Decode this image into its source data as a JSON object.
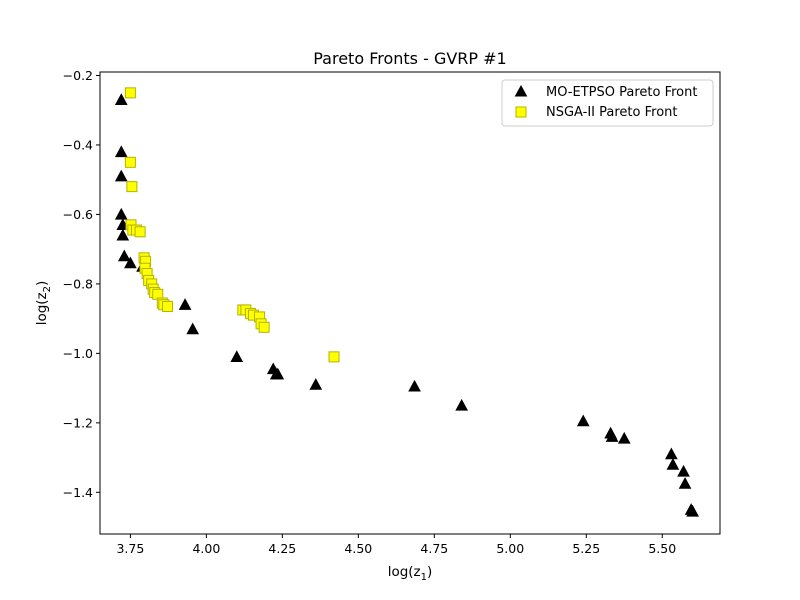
{
  "chart_data": {
    "type": "scatter",
    "title": "Pareto Fronts - GVRP #1",
    "xlabel": "log(z",
    "xlabel_sub": "1",
    "xlabel_close": ")",
    "ylabel": "log(z",
    "ylabel_sub": "2",
    "ylabel_close": ")",
    "xlim": [
      3.65,
      5.69
    ],
    "ylim": [
      -1.52,
      -0.19
    ],
    "xticks": [
      3.75,
      4.0,
      4.25,
      4.5,
      4.75,
      5.0,
      5.25,
      5.5
    ],
    "xtick_labels": [
      "3.75",
      "4.00",
      "4.25",
      "4.50",
      "4.75",
      "5.00",
      "5.25",
      "5.50"
    ],
    "yticks": [
      -0.2,
      -0.4,
      -0.6,
      -0.8,
      -1.0,
      -1.2,
      -1.4
    ],
    "ytick_labels": [
      "−0.2",
      "−0.4",
      "−0.6",
      "−0.8",
      "−1.0",
      "−1.2",
      "−1.4"
    ],
    "grid": false,
    "legend_position": "top-right",
    "series": [
      {
        "name": "MO-ETPSO Pareto Front",
        "marker": "triangle",
        "color": "#000000",
        "edge": "#000000",
        "points": [
          [
            3.72,
            -0.27
          ],
          [
            3.72,
            -0.42
          ],
          [
            3.72,
            -0.49
          ],
          [
            3.72,
            -0.6
          ],
          [
            3.725,
            -0.63
          ],
          [
            3.725,
            -0.66
          ],
          [
            3.73,
            -0.72
          ],
          [
            3.75,
            -0.74
          ],
          [
            3.79,
            -0.75
          ],
          [
            3.93,
            -0.86
          ],
          [
            3.955,
            -0.93
          ],
          [
            4.1,
            -1.01
          ],
          [
            4.22,
            -1.045
          ],
          [
            4.23,
            -1.06
          ],
          [
            4.235,
            -1.06
          ],
          [
            4.36,
            -1.09
          ],
          [
            4.685,
            -1.095
          ],
          [
            4.84,
            -1.15
          ],
          [
            5.24,
            -1.195
          ],
          [
            5.33,
            -1.23
          ],
          [
            5.335,
            -1.24
          ],
          [
            5.375,
            -1.245
          ],
          [
            5.53,
            -1.29
          ],
          [
            5.535,
            -1.32
          ],
          [
            5.57,
            -1.34
          ],
          [
            5.575,
            -1.375
          ],
          [
            5.595,
            -1.45
          ],
          [
            5.6,
            -1.455
          ]
        ]
      },
      {
        "name": "NSGA-II Pareto Front",
        "marker": "square",
        "color": "#ffff00",
        "edge": "#b3b300",
        "points": [
          [
            3.75,
            -0.25
          ],
          [
            3.75,
            -0.45
          ],
          [
            3.755,
            -0.52
          ],
          [
            3.752,
            -0.63
          ],
          [
            3.758,
            -0.645
          ],
          [
            3.77,
            -0.645
          ],
          [
            3.782,
            -0.65
          ],
          [
            3.795,
            -0.725
          ],
          [
            3.8,
            -0.735
          ],
          [
            3.798,
            -0.755
          ],
          [
            3.805,
            -0.77
          ],
          [
            3.81,
            -0.79
          ],
          [
            3.82,
            -0.8
          ],
          [
            3.825,
            -0.815
          ],
          [
            3.83,
            -0.825
          ],
          [
            3.84,
            -0.83
          ],
          [
            3.855,
            -0.855
          ],
          [
            3.86,
            -0.86
          ],
          [
            3.872,
            -0.865
          ],
          [
            4.12,
            -0.875
          ],
          [
            4.13,
            -0.875
          ],
          [
            4.145,
            -0.885
          ],
          [
            4.155,
            -0.89
          ],
          [
            4.175,
            -0.895
          ],
          [
            4.18,
            -0.915
          ],
          [
            4.19,
            -0.925
          ],
          [
            4.42,
            -1.01
          ]
        ]
      }
    ]
  }
}
